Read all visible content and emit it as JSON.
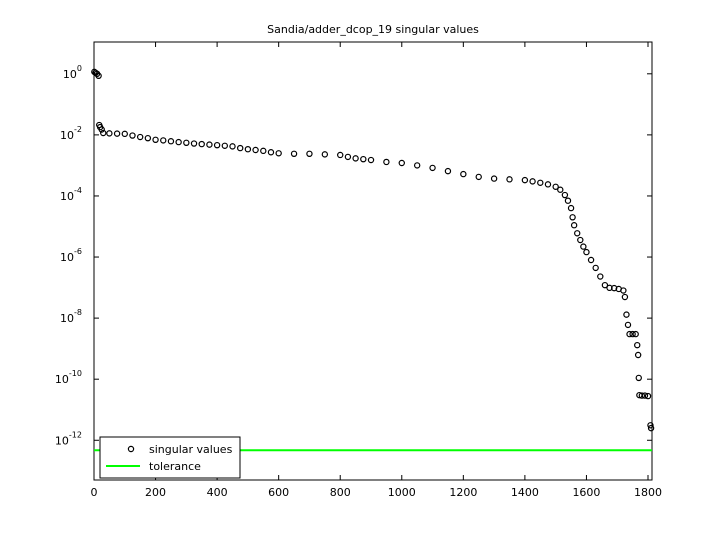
{
  "chart_data": {
    "type": "scatter",
    "title": "Sandia/adder_dcop_19 singular values",
    "x": [
      1,
      5,
      10,
      15,
      17,
      20,
      25,
      30,
      50,
      75,
      100,
      125,
      150,
      175,
      200,
      225,
      250,
      275,
      300,
      325,
      350,
      375,
      400,
      425,
      450,
      475,
      500,
      525,
      550,
      575,
      600,
      650,
      700,
      750,
      800,
      825,
      850,
      875,
      900,
      950,
      1000,
      1050,
      1100,
      1150,
      1200,
      1250,
      1300,
      1350,
      1400,
      1425,
      1450,
      1475,
      1500,
      1515,
      1530,
      1540,
      1550,
      1555,
      1560,
      1570,
      1580,
      1590,
      1600,
      1615,
      1630,
      1645,
      1660,
      1675,
      1690,
      1705,
      1720,
      1725,
      1730,
      1735,
      1740,
      1750,
      1760,
      1765,
      1768,
      1770,
      1772,
      1780,
      1790,
      1800,
      1808,
      1810
    ],
    "series": [
      {
        "name": "singular values",
        "color": "#000000",
        "values": [
          1.16,
          1.08,
          1.0,
          0.86,
          0.021,
          0.018,
          0.015,
          0.0115,
          0.0112,
          0.011,
          0.0108,
          0.0095,
          0.0085,
          0.0078,
          0.0069,
          0.0066,
          0.0062,
          0.0058,
          0.0055,
          0.0052,
          0.005,
          0.0048,
          0.0046,
          0.0044,
          0.0042,
          0.0037,
          0.0034,
          0.0032,
          0.003,
          0.0027,
          0.0025,
          0.0024,
          0.0024,
          0.0023,
          0.0022,
          0.0019,
          0.0017,
          0.0016,
          0.0015,
          0.0013,
          0.0012,
          0.001,
          0.00083,
          0.00065,
          0.00052,
          0.00042,
          0.00037,
          0.00035,
          0.00033,
          0.0003,
          0.00027,
          0.00024,
          0.0002,
          0.00016,
          0.000107,
          7e-05,
          4e-05,
          2e-05,
          1.1e-05,
          6e-06,
          3.6e-06,
          2.2e-06,
          1.45e-06,
          8e-07,
          4.4e-07,
          2.3e-07,
          1.2e-07,
          9.8e-08,
          9.6e-08,
          9e-08,
          8e-08,
          4.9e-08,
          1.3e-08,
          6e-09,
          3e-09,
          3e-09,
          3e-09,
          1.3e-09,
          6.2e-10,
          1.1e-10,
          3e-11,
          2.9e-11,
          2.9e-11,
          2.8e-11,
          3.1e-12,
          2.5e-12
        ]
      }
    ],
    "tolerance": {
      "name": "tolerance",
      "color": "#00ff00",
      "value": 4.7e-13
    },
    "xlim": [
      0,
      1813
    ],
    "xticks": [
      0,
      200,
      400,
      600,
      800,
      1000,
      1200,
      1400,
      1600,
      1800
    ],
    "ylim": [
      5e-14,
      11
    ],
    "log_y": true,
    "yticks": [
      {
        "value": 1,
        "label": "10^0"
      },
      {
        "value": 0.01,
        "label": "10^-2"
      },
      {
        "value": 0.0001,
        "label": "10^-4"
      },
      {
        "value": 1e-06,
        "label": "10^-6"
      },
      {
        "value": 1e-08,
        "label": "10^-8"
      },
      {
        "value": 1e-10,
        "label": "10^-10"
      },
      {
        "value": 1e-12,
        "label": "10^-12"
      }
    ],
    "legend": "lower left"
  }
}
